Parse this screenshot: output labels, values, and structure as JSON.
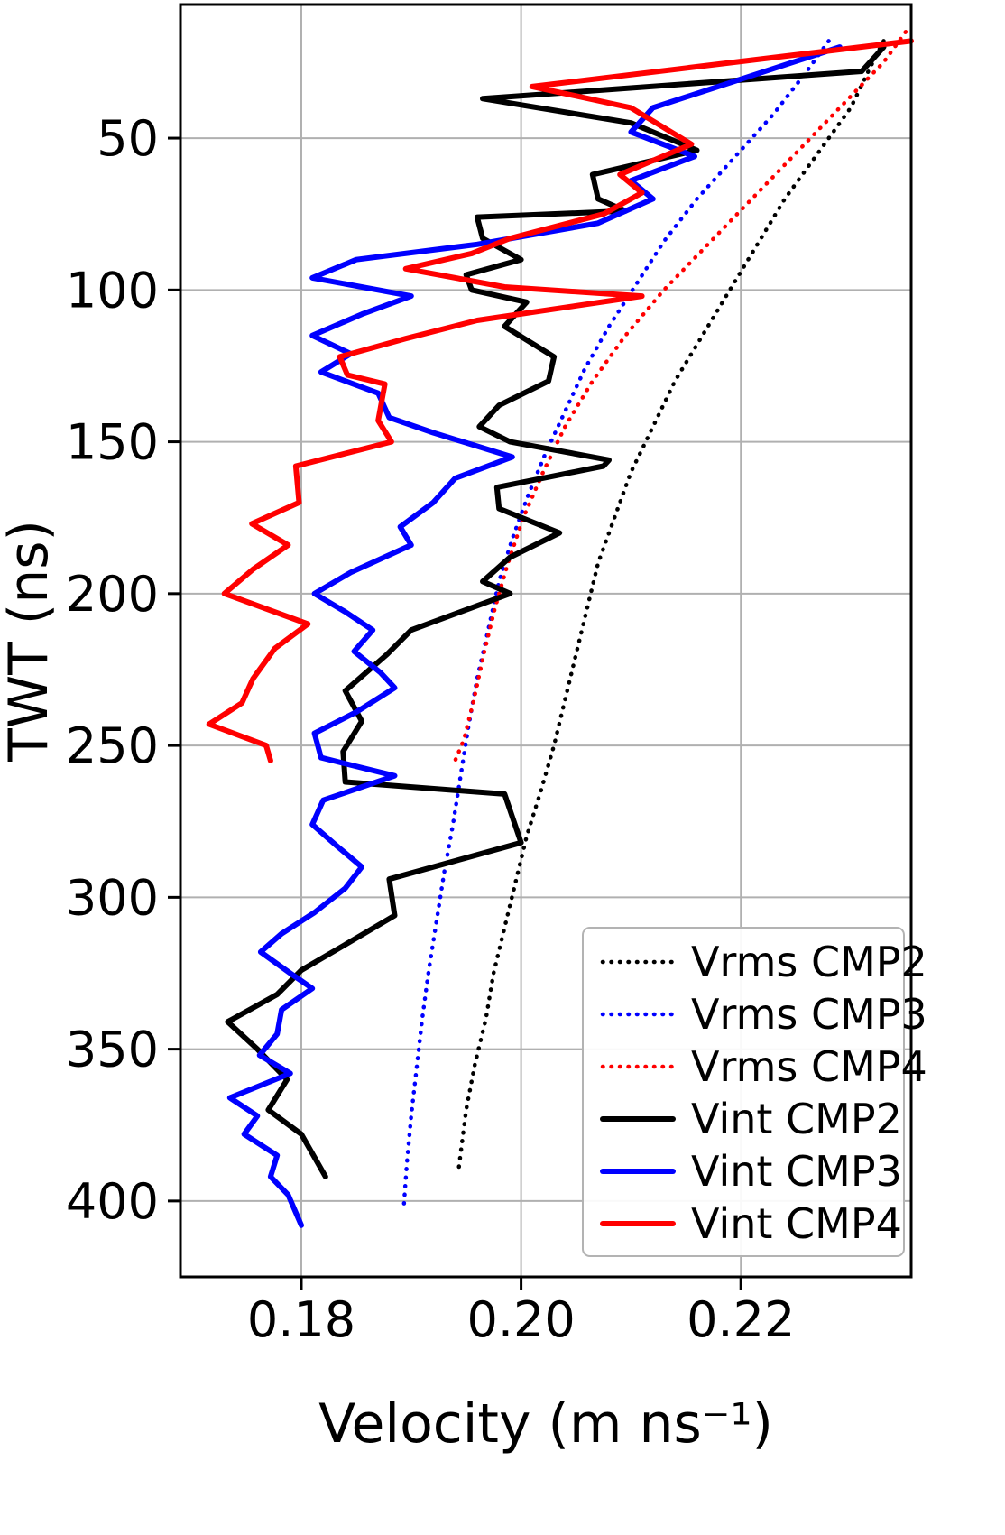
{
  "figure": {
    "background": "#ffffff"
  },
  "chart_data": {
    "type": "line",
    "title": "",
    "xlabel": "Velocity (m ns⁻¹)",
    "ylabel": "TWT (ns)",
    "xlim": [
      0.169,
      0.2355
    ],
    "ylim": [
      6,
      425
    ],
    "y_inverted": true,
    "grid": true,
    "grid_color": "#b0b0b0",
    "x_ticks": [
      0.18,
      0.2,
      0.22
    ],
    "x_tick_labels": [
      "0.18",
      "0.20",
      "0.22"
    ],
    "y_ticks": [
      50,
      100,
      150,
      200,
      250,
      300,
      350,
      400
    ],
    "y_tick_labels": [
      "50",
      "100",
      "150",
      "200",
      "250",
      "300",
      "350",
      "400"
    ],
    "legend_position": "lower right",
    "series": [
      {
        "name": "Vrms CMP2",
        "color": "#000000",
        "style": "dotted",
        "points": [
          [
            0.233,
            18
          ],
          [
            0.232,
            25
          ],
          [
            0.23,
            40
          ],
          [
            0.227,
            55
          ],
          [
            0.224,
            70
          ],
          [
            0.2215,
            85
          ],
          [
            0.219,
            100
          ],
          [
            0.2165,
            115
          ],
          [
            0.214,
            130
          ],
          [
            0.212,
            145
          ],
          [
            0.21,
            160
          ],
          [
            0.2085,
            175
          ],
          [
            0.207,
            190
          ],
          [
            0.206,
            205
          ],
          [
            0.205,
            220
          ],
          [
            0.204,
            235
          ],
          [
            0.203,
            250
          ],
          [
            0.2018,
            265
          ],
          [
            0.2005,
            280
          ],
          [
            0.1995,
            295
          ],
          [
            0.1985,
            310
          ],
          [
            0.1975,
            325
          ],
          [
            0.1968,
            340
          ],
          [
            0.1958,
            355
          ],
          [
            0.195,
            370
          ],
          [
            0.1943,
            390
          ]
        ]
      },
      {
        "name": "Vrms CMP3",
        "color": "#0000ff",
        "style": "dotted",
        "points": [
          [
            0.228,
            18
          ],
          [
            0.226,
            28
          ],
          [
            0.223,
            42
          ],
          [
            0.2195,
            56
          ],
          [
            0.216,
            70
          ],
          [
            0.213,
            84
          ],
          [
            0.2105,
            98
          ],
          [
            0.208,
            112
          ],
          [
            0.2058,
            126
          ],
          [
            0.204,
            140
          ],
          [
            0.2022,
            154
          ],
          [
            0.2006,
            168
          ],
          [
            0.1992,
            182
          ],
          [
            0.198,
            196
          ],
          [
            0.197,
            212
          ],
          [
            0.196,
            228
          ],
          [
            0.1952,
            244
          ],
          [
            0.1945,
            260
          ],
          [
            0.1938,
            276
          ],
          [
            0.193,
            292
          ],
          [
            0.1923,
            308
          ],
          [
            0.1916,
            324
          ],
          [
            0.191,
            340
          ],
          [
            0.1905,
            356
          ],
          [
            0.19,
            372
          ],
          [
            0.1896,
            388
          ],
          [
            0.1893,
            403
          ]
        ]
      },
      {
        "name": "Vrms CMP4",
        "color": "#ff0000",
        "style": "dotted",
        "points": [
          [
            0.235,
            15
          ],
          [
            0.233,
            25
          ],
          [
            0.229,
            40
          ],
          [
            0.225,
            55
          ],
          [
            0.221,
            70
          ],
          [
            0.217,
            85
          ],
          [
            0.213,
            100
          ],
          [
            0.2095,
            115
          ],
          [
            0.2065,
            130
          ],
          [
            0.204,
            145
          ],
          [
            0.202,
            160
          ],
          [
            0.2002,
            175
          ],
          [
            0.1988,
            190
          ],
          [
            0.1976,
            205
          ],
          [
            0.1966,
            220
          ],
          [
            0.1957,
            235
          ],
          [
            0.1948,
            248
          ],
          [
            0.194,
            255
          ]
        ]
      },
      {
        "name": "Vint CMP2",
        "color": "#000000",
        "style": "solid",
        "points": [
          [
            0.233,
            20
          ],
          [
            0.231,
            28
          ],
          [
            0.1965,
            37
          ],
          [
            0.21,
            45
          ],
          [
            0.216,
            54
          ],
          [
            0.2065,
            62
          ],
          [
            0.207,
            70
          ],
          [
            0.2095,
            74
          ],
          [
            0.196,
            76
          ],
          [
            0.1965,
            83
          ],
          [
            0.2,
            90
          ],
          [
            0.195,
            95
          ],
          [
            0.1955,
            100
          ],
          [
            0.2005,
            104
          ],
          [
            0.1985,
            112
          ],
          [
            0.203,
            122
          ],
          [
            0.2025,
            130
          ],
          [
            0.198,
            138
          ],
          [
            0.1962,
            145
          ],
          [
            0.199,
            150
          ],
          [
            0.208,
            156
          ],
          [
            0.2075,
            158
          ],
          [
            0.1978,
            165
          ],
          [
            0.198,
            172
          ],
          [
            0.2035,
            180
          ],
          [
            0.199,
            188
          ],
          [
            0.1965,
            196
          ],
          [
            0.199,
            200
          ],
          [
            0.19,
            212
          ],
          [
            0.1878,
            220
          ],
          [
            0.184,
            232
          ],
          [
            0.1855,
            242
          ],
          [
            0.1838,
            252
          ],
          [
            0.184,
            262
          ],
          [
            0.1985,
            266
          ],
          [
            0.2,
            282
          ],
          [
            0.188,
            294
          ],
          [
            0.1885,
            306
          ],
          [
            0.1838,
            316
          ],
          [
            0.18,
            324
          ],
          [
            0.1778,
            332
          ],
          [
            0.1733,
            341
          ],
          [
            0.176,
            350
          ],
          [
            0.1787,
            360
          ],
          [
            0.177,
            370
          ],
          [
            0.18,
            378
          ],
          [
            0.1822,
            392
          ]
        ]
      },
      {
        "name": "Vint CMP3",
        "color": "#0000ff",
        "style": "solid",
        "points": [
          [
            0.229,
            20
          ],
          [
            0.212,
            40
          ],
          [
            0.21,
            48
          ],
          [
            0.2158,
            56
          ],
          [
            0.21,
            64
          ],
          [
            0.212,
            70
          ],
          [
            0.207,
            78
          ],
          [
            0.196,
            85
          ],
          [
            0.185,
            90
          ],
          [
            0.181,
            96
          ],
          [
            0.19,
            102
          ],
          [
            0.1855,
            108
          ],
          [
            0.181,
            115
          ],
          [
            0.1845,
            121
          ],
          [
            0.1818,
            127
          ],
          [
            0.187,
            134
          ],
          [
            0.188,
            142
          ],
          [
            0.192,
            147
          ],
          [
            0.1992,
            155
          ],
          [
            0.194,
            162
          ],
          [
            0.192,
            170
          ],
          [
            0.189,
            178
          ],
          [
            0.19,
            184
          ],
          [
            0.1845,
            193
          ],
          [
            0.1812,
            200
          ],
          [
            0.184,
            206
          ],
          [
            0.1865,
            212
          ],
          [
            0.1848,
            219
          ],
          [
            0.1872,
            226
          ],
          [
            0.1885,
            231
          ],
          [
            0.185,
            239
          ],
          [
            0.1812,
            246
          ],
          [
            0.1818,
            254
          ],
          [
            0.1885,
            260
          ],
          [
            0.182,
            268
          ],
          [
            0.181,
            276
          ],
          [
            0.1832,
            283
          ],
          [
            0.1855,
            290
          ],
          [
            0.184,
            297
          ],
          [
            0.1812,
            305
          ],
          [
            0.1782,
            312
          ],
          [
            0.1763,
            318
          ],
          [
            0.179,
            325
          ],
          [
            0.181,
            330
          ],
          [
            0.1782,
            337
          ],
          [
            0.1778,
            345
          ],
          [
            0.1762,
            352
          ],
          [
            0.179,
            358
          ],
          [
            0.1735,
            366
          ],
          [
            0.176,
            372
          ],
          [
            0.1748,
            378
          ],
          [
            0.1778,
            385
          ],
          [
            0.1772,
            392
          ],
          [
            0.1788,
            398
          ],
          [
            0.18,
            408
          ]
        ]
      },
      {
        "name": "Vint CMP4",
        "color": "#ff0000",
        "style": "solid",
        "points": [
          [
            0.2355,
            18
          ],
          [
            0.201,
            33
          ],
          [
            0.21,
            40
          ],
          [
            0.2155,
            52
          ],
          [
            0.209,
            62
          ],
          [
            0.211,
            68
          ],
          [
            0.2075,
            75
          ],
          [
            0.199,
            83
          ],
          [
            0.1955,
            88
          ],
          [
            0.1895,
            93
          ],
          [
            0.1985,
            99
          ],
          [
            0.211,
            102
          ],
          [
            0.196,
            110
          ],
          [
            0.1895,
            116
          ],
          [
            0.1835,
            122
          ],
          [
            0.1842,
            128
          ],
          [
            0.1876,
            131
          ],
          [
            0.187,
            143
          ],
          [
            0.1882,
            150
          ],
          [
            0.1795,
            158
          ],
          [
            0.1798,
            170
          ],
          [
            0.1755,
            177
          ],
          [
            0.1788,
            184
          ],
          [
            0.1756,
            192
          ],
          [
            0.173,
            200
          ],
          [
            0.1806,
            210
          ],
          [
            0.1776,
            218
          ],
          [
            0.1756,
            228
          ],
          [
            0.1746,
            236
          ],
          [
            0.1716,
            243
          ],
          [
            0.1768,
            250
          ],
          [
            0.1772,
            255
          ]
        ]
      }
    ]
  }
}
